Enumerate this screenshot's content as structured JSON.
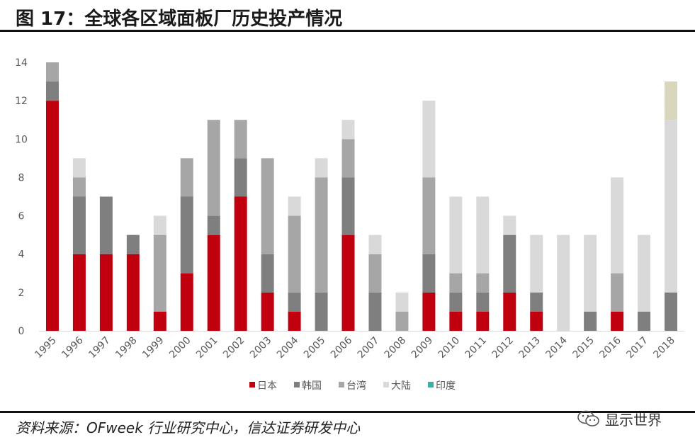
{
  "header": {
    "title": "图 17：全球各区域面板厂历史投产情况"
  },
  "footer": {
    "source": "资料来源：OFweek 行业研究中心，信达证券研发中心",
    "watermark": "显示世界"
  },
  "colors": {
    "日本": "#c0000f",
    "韩国": "#7f7f7f",
    "台湾": "#a6a6a6",
    "大陆": "#d9d9d9",
    "印度": "#d8d6bd",
    "legend_印度": "#3fb0a0"
  },
  "chart_data": {
    "type": "bar",
    "stacked": true,
    "title": "",
    "xlabel": "",
    "ylabel": "",
    "ylim": [
      0,
      14
    ],
    "yticks": [
      0,
      2,
      4,
      6,
      8,
      10,
      12,
      14
    ],
    "grid": false,
    "legend_position": "bottom",
    "categories": [
      "1995",
      "1996",
      "1997",
      "1998",
      "1999",
      "2000",
      "2001",
      "2002",
      "2003",
      "2004",
      "2005",
      "2006",
      "2007",
      "2008",
      "2009",
      "2010",
      "2011",
      "2012",
      "2013",
      "2014",
      "2015",
      "2016",
      "2017",
      "2018"
    ],
    "series": [
      {
        "name": "日本",
        "values": [
          12,
          4,
          4,
          4,
          1,
          3,
          5,
          7,
          2,
          1,
          0,
          5,
          0,
          0,
          2,
          1,
          1,
          2,
          1,
          0,
          0,
          1,
          0,
          0
        ]
      },
      {
        "name": "韩国",
        "values": [
          1,
          3,
          3,
          1,
          0,
          4,
          1,
          2,
          2,
          1,
          2,
          3,
          2,
          0,
          2,
          1,
          1,
          3,
          1,
          0,
          1,
          0,
          1,
          2
        ]
      },
      {
        "name": "台湾",
        "values": [
          1,
          1,
          0,
          0,
          4,
          2,
          5,
          2,
          5,
          4,
          6,
          2,
          2,
          1,
          4,
          1,
          1,
          0,
          0,
          0,
          0,
          2,
          0,
          0
        ]
      },
      {
        "name": "大陆",
        "values": [
          0,
          1,
          0,
          0,
          1,
          0,
          0,
          0,
          0,
          1,
          1,
          1,
          1,
          1,
          4,
          4,
          4,
          1,
          3,
          5,
          4,
          5,
          4,
          9
        ]
      },
      {
        "name": "印度",
        "values": [
          0,
          0,
          0,
          0,
          0,
          0,
          0,
          0,
          0,
          0,
          0,
          0,
          0,
          0,
          0,
          0,
          0,
          0,
          0,
          0,
          0,
          0,
          0,
          2
        ]
      }
    ]
  }
}
